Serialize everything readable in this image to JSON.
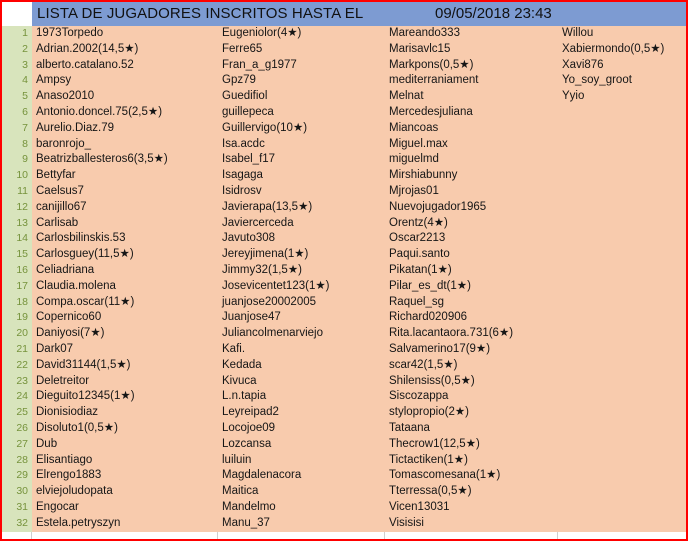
{
  "colors": {
    "border_red": "#FF0000",
    "header_bg": "#7D9BD2",
    "rownum_bg": "#D8E4BC",
    "rownum_text": "#76933C",
    "cell_bg": "#F8CBAD"
  },
  "header": {
    "title": "LISTA DE JUGADORES INSCRITOS HASTA  EL",
    "datetime": "09/05/2018 23:43"
  },
  "table": {
    "rows": [
      {
        "n": "1",
        "c1": "1973Torpedo",
        "c2": "Eugeniolor(4★)",
        "c3": "Mareando333",
        "c4": "Willou"
      },
      {
        "n": "2",
        "c1": "Adrian.2002(14,5★)",
        "c2": "Ferre65",
        "c3": "Marisavlc15",
        "c4": "Xabiermondo(0,5★)"
      },
      {
        "n": "3",
        "c1": "alberto.catalano.52",
        "c2": "Fran_a_g1977",
        "c3": "Markpons(0,5★)",
        "c4": "Xavi876"
      },
      {
        "n": "4",
        "c1": "Ampsy",
        "c2": "Gpz79",
        "c3": "mediterraniament",
        "c4": "Yo_soy_groot"
      },
      {
        "n": "5",
        "c1": "Anaso2010",
        "c2": "Guedifiol",
        "c3": "Melnat",
        "c4": "Yyio"
      },
      {
        "n": "6",
        "c1": "Antonio.doncel.75(2,5★)",
        "c2": "guillepeca",
        "c3": "Mercedesjuliana",
        "c4": ""
      },
      {
        "n": "7",
        "c1": "Aurelio.Diaz.79",
        "c2": "Guillervigo(10★)",
        "c3": "Miancoas",
        "c4": ""
      },
      {
        "n": "8",
        "c1": "baronrojo_",
        "c2": "Isa.acdc",
        "c3": "Miguel.max",
        "c4": ""
      },
      {
        "n": "9",
        "c1": "Beatrizballesteros6(3,5★)",
        "c2": "Isabel_f17",
        "c3": "miguelmd",
        "c4": ""
      },
      {
        "n": "10",
        "c1": "Bettyfar",
        "c2": "Isagaga",
        "c3": "Mirshiabunny",
        "c4": ""
      },
      {
        "n": "11",
        "c1": "Caelsus7",
        "c2": "Isidrosv",
        "c3": "Mjrojas01",
        "c4": ""
      },
      {
        "n": "12",
        "c1": "canijillo67",
        "c2": "Javierapa(13,5★)",
        "c3": "Nuevojugador1965",
        "c4": ""
      },
      {
        "n": "13",
        "c1": "Carlisab",
        "c2": "Javiercerceda",
        "c3": "Orentz(4★)",
        "c4": ""
      },
      {
        "n": "14",
        "c1": "Carlosbilinskis.53",
        "c2": "Javuto308",
        "c3": "Oscar2213",
        "c4": ""
      },
      {
        "n": "15",
        "c1": "Carlosguey(11,5★)",
        "c2": "Jereyjimena(1★)",
        "c3": "Paqui.santo",
        "c4": ""
      },
      {
        "n": "16",
        "c1": "Celiadriana",
        "c2": "Jimmy32(1,5★)",
        "c3": "Pikatan(1★)",
        "c4": ""
      },
      {
        "n": "17",
        "c1": "Claudia.molena",
        "c2": "Josevicentet123(1★)",
        "c3": "Pilar_es_dt(1★)",
        "c4": ""
      },
      {
        "n": "18",
        "c1": "Compa.oscar(11★)",
        "c2": "juanjose20002005",
        "c3": "Raquel_sg",
        "c4": ""
      },
      {
        "n": "19",
        "c1": "Copernico60",
        "c2": "Juanjose47",
        "c3": "Richard020906",
        "c4": ""
      },
      {
        "n": "20",
        "c1": "Daniyosi(7★)",
        "c2": "Juliancolmenarviejo",
        "c3": "Rita.lacantaora.731(6★)",
        "c4": ""
      },
      {
        "n": "21",
        "c1": "Dark07",
        "c2": "Kafi.",
        "c3": "Salvamerino17(9★)",
        "c4": ""
      },
      {
        "n": "22",
        "c1": "David31144(1,5★)",
        "c2": "Kedada",
        "c3": "scar42(1,5★)",
        "c4": ""
      },
      {
        "n": "23",
        "c1": "Deletreitor",
        "c2": "Kivuca",
        "c3": "Shilensiss(0,5★)",
        "c4": ""
      },
      {
        "n": "24",
        "c1": "Dieguito12345(1★)",
        "c2": "L.n.tapia",
        "c3": "Siscozappa",
        "c4": ""
      },
      {
        "n": "25",
        "c1": "Dionisiodiaz",
        "c2": "Leyreipad2",
        "c3": "stylopropio(2★)",
        "c4": ""
      },
      {
        "n": "26",
        "c1": "Disoluto1(0,5★)",
        "c2": "Locojoe09",
        "c3": "Tataana",
        "c4": ""
      },
      {
        "n": "27",
        "c1": "Dub",
        "c2": "Lozcansa",
        "c3": "Thecrow1(12,5★)",
        "c4": ""
      },
      {
        "n": "28",
        "c1": "Elisantiago",
        "c2": "luiluin",
        "c3": "Tictactiken(1★)",
        "c4": ""
      },
      {
        "n": "29",
        "c1": "Elrengo1883",
        "c2": "Magdalenacora",
        "c3": "Tomascomesana(1★)",
        "c4": ""
      },
      {
        "n": "30",
        "c1": "elviejoludopata",
        "c2": "Maitica",
        "c3": "Tterressa(0,5★)",
        "c4": ""
      },
      {
        "n": "31",
        "c1": "Engocar",
        "c2": "Mandelmo",
        "c3": "Vicen13031",
        "c4": ""
      },
      {
        "n": "32",
        "c1": "Estela.petryszyn",
        "c2": "Manu_37",
        "c3": "Visisisi",
        "c4": ""
      }
    ]
  }
}
